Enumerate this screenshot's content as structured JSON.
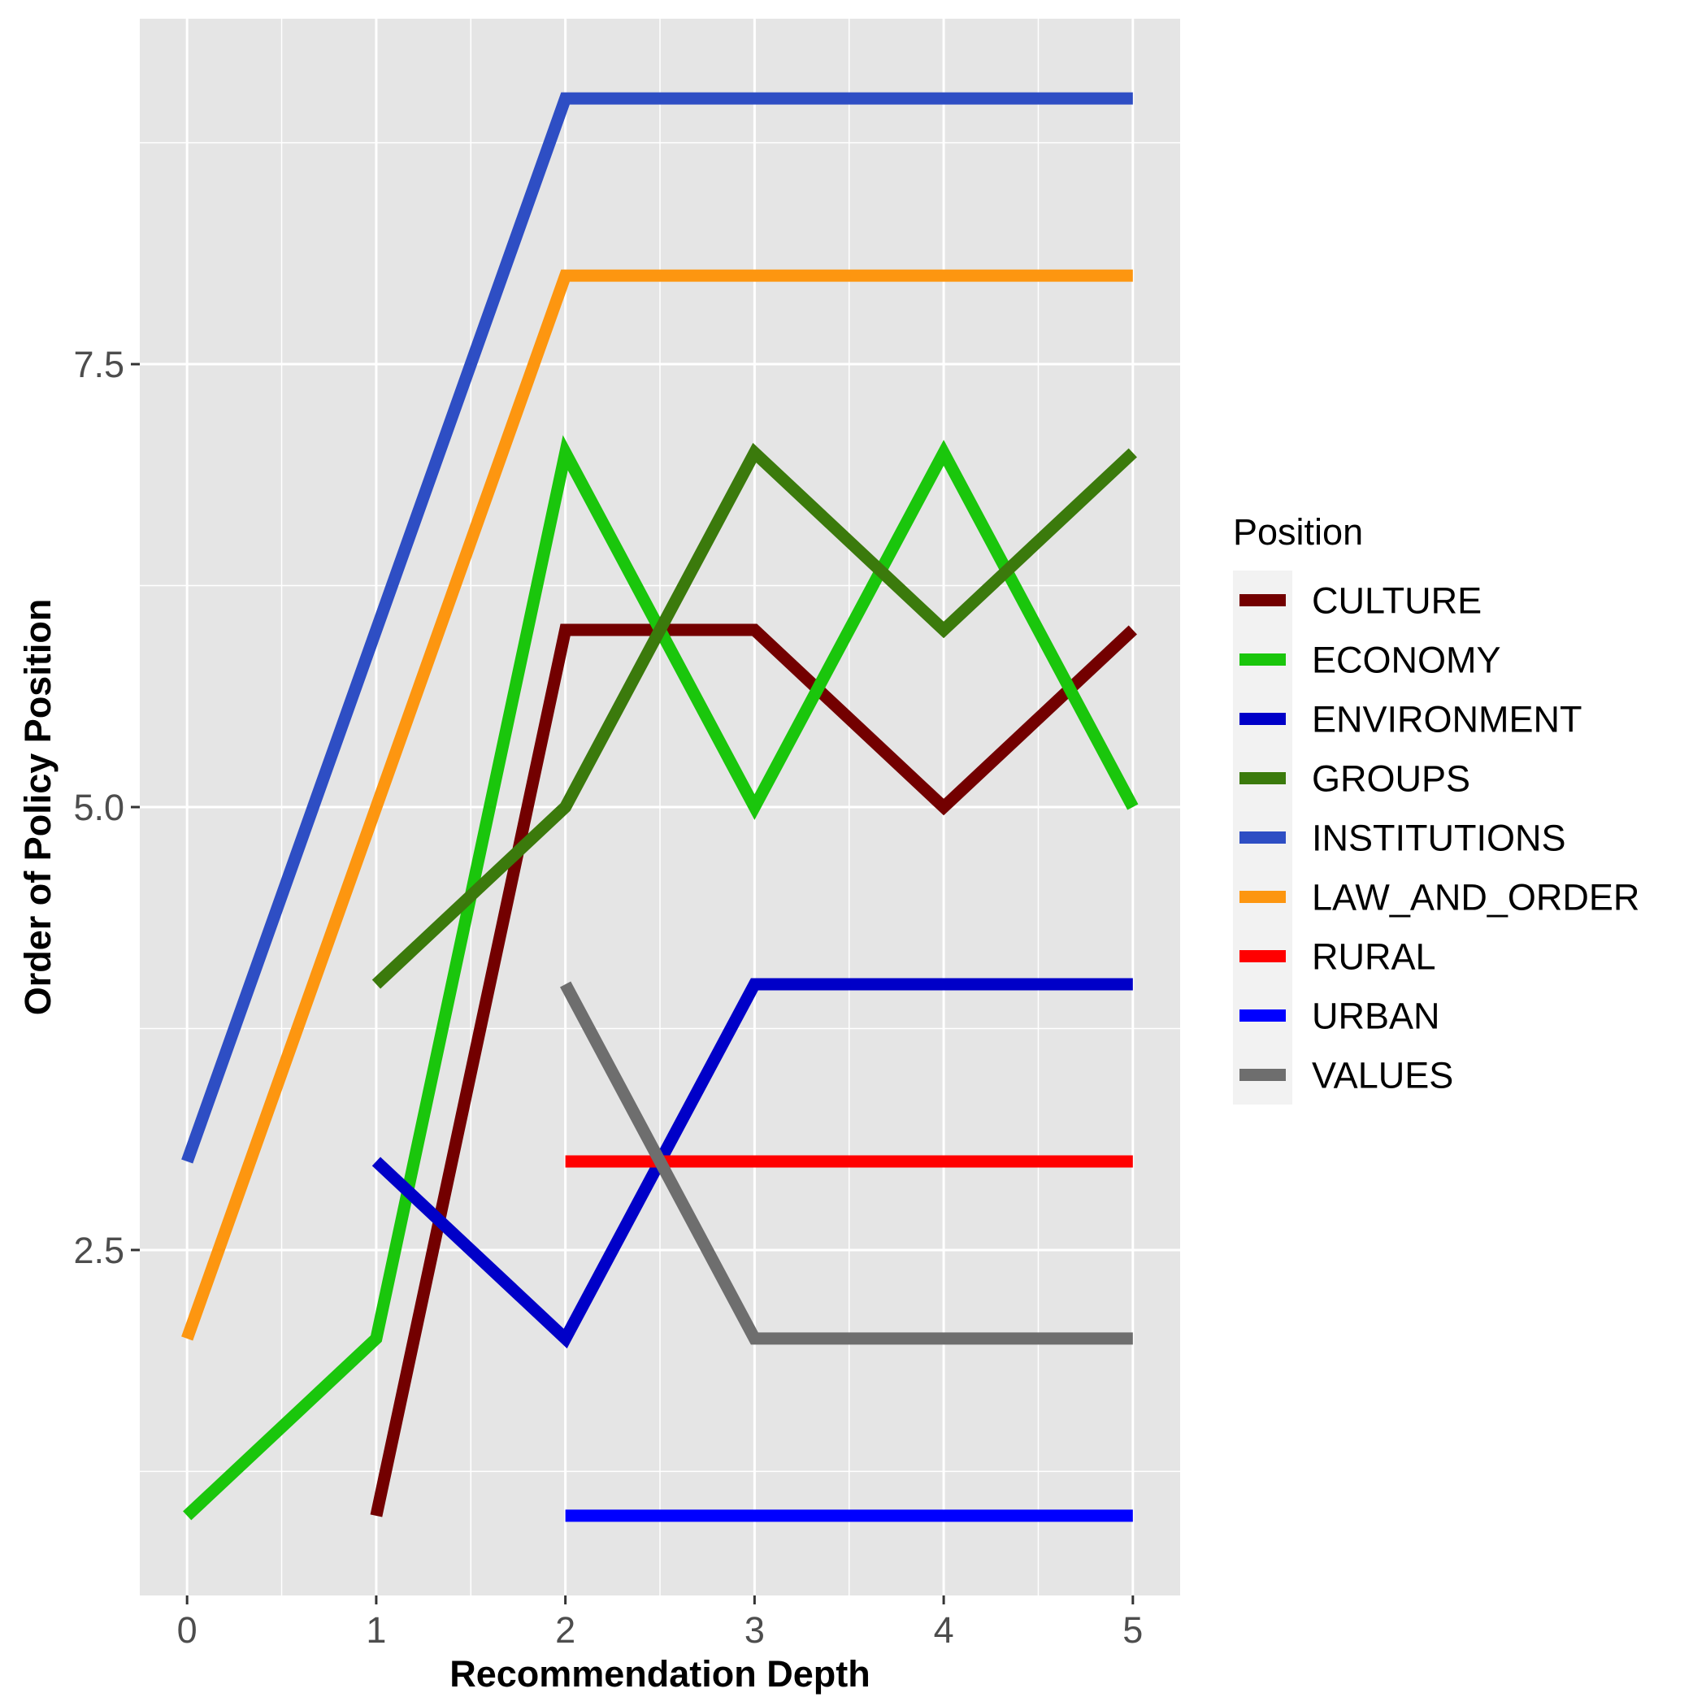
{
  "chart_data": {
    "type": "line",
    "xlabel": "Recommendation Depth",
    "ylabel": "Order of Policy Position",
    "xlim": [
      -0.25,
      5.25
    ],
    "ylim": [
      0.55,
      9.45
    ],
    "x_ticks": [
      "0",
      "1",
      "2",
      "3",
      "4",
      "5"
    ],
    "y_ticks": [
      "2.5",
      "5.0",
      "7.5"
    ],
    "grid": true,
    "legend": {
      "title": "Position",
      "placement": "right"
    },
    "series": [
      {
        "name": "CULTURE",
        "color": "#730000",
        "x": [
          1,
          2,
          3,
          4,
          5
        ],
        "y": [
          1,
          6,
          6,
          5,
          6
        ]
      },
      {
        "name": "ECONOMY",
        "color": "#1ac60c",
        "x": [
          0,
          1,
          2,
          3,
          4,
          5
        ],
        "y": [
          1,
          2,
          7,
          5,
          7,
          5
        ]
      },
      {
        "name": "ENVIRONMENT",
        "color": "#0000c8",
        "x": [
          1,
          2,
          3,
          4,
          5
        ],
        "y": [
          3,
          2,
          4,
          4,
          4
        ]
      },
      {
        "name": "GROUPS",
        "color": "#3b7a0c",
        "x": [
          1,
          2,
          3,
          4,
          5
        ],
        "y": [
          4,
          5,
          7,
          6,
          7
        ]
      },
      {
        "name": "INSTITUTIONS",
        "color": "#2e4ec4",
        "x": [
          0,
          2,
          3,
          4,
          5
        ],
        "y": [
          3,
          9,
          9,
          9,
          9
        ]
      },
      {
        "name": "LAW_AND_ORDER",
        "color": "#fd9610",
        "x": [
          0,
          2,
          3,
          4,
          5
        ],
        "y": [
          2,
          8,
          8,
          8,
          8
        ]
      },
      {
        "name": "RURAL",
        "color": "#ff0000",
        "x": [
          2,
          3,
          4,
          5
        ],
        "y": [
          3,
          3,
          3,
          3
        ]
      },
      {
        "name": "URBAN",
        "color": "#0000ff",
        "x": [
          2,
          3,
          4,
          5
        ],
        "y": [
          1,
          1,
          1,
          1
        ]
      },
      {
        "name": "VALUES",
        "color": "#6e6e6e",
        "x": [
          2,
          3,
          4,
          5
        ],
        "y": [
          4,
          2,
          2,
          2
        ]
      }
    ]
  }
}
